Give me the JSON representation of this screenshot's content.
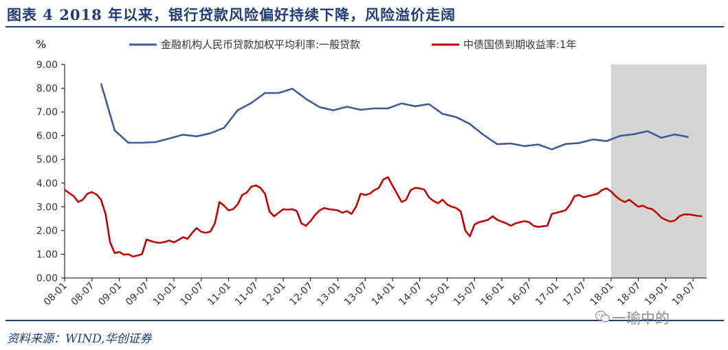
{
  "header": {
    "title": "图表 4   2018 年以来，银行贷款风险偏好持续下降，风险溢价走阔"
  },
  "footer": {
    "source": "资料来源：WIND,华创证券",
    "watermark": "一瑜中的"
  },
  "colors": {
    "title": "#1f3c78",
    "series_loan": "#3d5a9a",
    "series_bond": "#c00000",
    "shade": "#d4d4d4"
  },
  "chart_data": {
    "type": "line",
    "unit_label": "%",
    "ylim": [
      0,
      9
    ],
    "yticks": [
      "0.00",
      "1.00",
      "2.00",
      "3.00",
      "4.00",
      "5.00",
      "6.00",
      "7.00",
      "8.00",
      "9.00"
    ],
    "xlim": [
      "2008-01",
      "2019-10"
    ],
    "xticks": [
      "08-01",
      "08-07",
      "09-01",
      "09-07",
      "10-01",
      "10-07",
      "11-01",
      "11-07",
      "12-01",
      "12-07",
      "13-01",
      "13-07",
      "14-01",
      "14-07",
      "15-01",
      "15-07",
      "16-01",
      "16-07",
      "17-01",
      "17-07",
      "18-01",
      "18-07",
      "19-01",
      "19-07"
    ],
    "legend_position": "top",
    "shaded_region": [
      "2018-01",
      "2019-10"
    ],
    "grid": false,
    "series": [
      {
        "name": "金融机构人民币贷款加权平均利率:一般贷款",
        "points": [
          [
            "2008-09",
            8.2
          ],
          [
            "2008-12",
            6.22
          ],
          [
            "2009-03",
            5.7
          ],
          [
            "2009-06",
            5.7
          ],
          [
            "2009-09",
            5.73
          ],
          [
            "2009-12",
            5.88
          ],
          [
            "2010-03",
            6.04
          ],
          [
            "2010-06",
            5.97
          ],
          [
            "2010-09",
            6.1
          ],
          [
            "2010-12",
            6.33
          ],
          [
            "2011-03",
            7.07
          ],
          [
            "2011-06",
            7.38
          ],
          [
            "2011-09",
            7.8
          ],
          [
            "2011-12",
            7.8
          ],
          [
            "2012-03",
            7.98
          ],
          [
            "2012-06",
            7.55
          ],
          [
            "2012-09",
            7.2
          ],
          [
            "2012-12",
            7.07
          ],
          [
            "2013-03",
            7.22
          ],
          [
            "2013-06",
            7.09
          ],
          [
            "2013-09",
            7.15
          ],
          [
            "2013-12",
            7.15
          ],
          [
            "2014-03",
            7.36
          ],
          [
            "2014-06",
            7.24
          ],
          [
            "2014-09",
            7.33
          ],
          [
            "2014-12",
            6.92
          ],
          [
            "2015-03",
            6.78
          ],
          [
            "2015-06",
            6.49
          ],
          [
            "2015-09",
            6.03
          ],
          [
            "2015-12",
            5.64
          ],
          [
            "2016-03",
            5.67
          ],
          [
            "2016-06",
            5.56
          ],
          [
            "2016-09",
            5.63
          ],
          [
            "2016-12",
            5.42
          ],
          [
            "2017-03",
            5.65
          ],
          [
            "2017-06",
            5.69
          ],
          [
            "2017-09",
            5.84
          ],
          [
            "2017-12",
            5.77
          ],
          [
            "2018-03",
            5.99
          ],
          [
            "2018-06",
            6.06
          ],
          [
            "2018-09",
            6.19
          ],
          [
            "2018-12",
            5.91
          ],
          [
            "2019-03",
            6.05
          ],
          [
            "2019-06",
            5.94
          ]
        ]
      },
      {
        "name": "中债国债到期收益率:1年",
        "points": [
          [
            "2008-01",
            3.72
          ],
          [
            "2008-02",
            3.58
          ],
          [
            "2008-03",
            3.45
          ],
          [
            "2008-04",
            3.2
          ],
          [
            "2008-05",
            3.3
          ],
          [
            "2008-06",
            3.55
          ],
          [
            "2008-07",
            3.62
          ],
          [
            "2008-08",
            3.52
          ],
          [
            "2008-09",
            3.3
          ],
          [
            "2008-10",
            2.7
          ],
          [
            "2008-11",
            1.5
          ],
          [
            "2008-12",
            1.05
          ],
          [
            "2009-01",
            1.1
          ],
          [
            "2009-02",
            0.98
          ],
          [
            "2009-03",
            1.0
          ],
          [
            "2009-04",
            0.9
          ],
          [
            "2009-05",
            0.95
          ],
          [
            "2009-06",
            1.0
          ],
          [
            "2009-07",
            1.62
          ],
          [
            "2009-08",
            1.55
          ],
          [
            "2009-09",
            1.5
          ],
          [
            "2009-10",
            1.48
          ],
          [
            "2009-11",
            1.52
          ],
          [
            "2009-12",
            1.58
          ],
          [
            "2010-01",
            1.5
          ],
          [
            "2010-02",
            1.6
          ],
          [
            "2010-03",
            1.72
          ],
          [
            "2010-04",
            1.65
          ],
          [
            "2010-05",
            1.9
          ],
          [
            "2010-06",
            2.1
          ],
          [
            "2010-07",
            1.95
          ],
          [
            "2010-08",
            1.9
          ],
          [
            "2010-09",
            1.95
          ],
          [
            "2010-10",
            2.3
          ],
          [
            "2010-11",
            3.2
          ],
          [
            "2010-12",
            3.05
          ],
          [
            "2011-01",
            2.85
          ],
          [
            "2011-02",
            2.9
          ],
          [
            "2011-03",
            3.1
          ],
          [
            "2011-04",
            3.5
          ],
          [
            "2011-05",
            3.6
          ],
          [
            "2011-06",
            3.85
          ],
          [
            "2011-07",
            3.9
          ],
          [
            "2011-08",
            3.8
          ],
          [
            "2011-09",
            3.55
          ],
          [
            "2011-10",
            2.8
          ],
          [
            "2011-11",
            2.6
          ],
          [
            "2011-12",
            2.75
          ],
          [
            "2012-01",
            2.9
          ],
          [
            "2012-02",
            2.88
          ],
          [
            "2012-03",
            2.9
          ],
          [
            "2012-04",
            2.82
          ],
          [
            "2012-05",
            2.3
          ],
          [
            "2012-06",
            2.2
          ],
          [
            "2012-07",
            2.4
          ],
          [
            "2012-08",
            2.65
          ],
          [
            "2012-09",
            2.85
          ],
          [
            "2012-10",
            2.95
          ],
          [
            "2012-11",
            2.9
          ],
          [
            "2012-12",
            2.88
          ],
          [
            "2013-01",
            2.85
          ],
          [
            "2013-02",
            2.75
          ],
          [
            "2013-03",
            2.82
          ],
          [
            "2013-04",
            2.7
          ],
          [
            "2013-05",
            3.0
          ],
          [
            "2013-06",
            3.55
          ],
          [
            "2013-07",
            3.5
          ],
          [
            "2013-08",
            3.55
          ],
          [
            "2013-09",
            3.7
          ],
          [
            "2013-10",
            3.8
          ],
          [
            "2013-11",
            4.15
          ],
          [
            "2013-12",
            4.25
          ],
          [
            "2014-01",
            3.9
          ],
          [
            "2014-02",
            3.55
          ],
          [
            "2014-03",
            3.2
          ],
          [
            "2014-04",
            3.3
          ],
          [
            "2014-05",
            3.7
          ],
          [
            "2014-06",
            3.8
          ],
          [
            "2014-07",
            3.78
          ],
          [
            "2014-08",
            3.72
          ],
          [
            "2014-09",
            3.4
          ],
          [
            "2014-10",
            3.25
          ],
          [
            "2014-11",
            3.15
          ],
          [
            "2014-12",
            3.3
          ],
          [
            "2015-01",
            3.1
          ],
          [
            "2015-02",
            3.0
          ],
          [
            "2015-03",
            2.95
          ],
          [
            "2015-04",
            2.8
          ],
          [
            "2015-05",
            2.0
          ],
          [
            "2015-06",
            1.75
          ],
          [
            "2015-07",
            2.25
          ],
          [
            "2015-08",
            2.35
          ],
          [
            "2015-09",
            2.4
          ],
          [
            "2015-10",
            2.45
          ],
          [
            "2015-11",
            2.6
          ],
          [
            "2015-12",
            2.45
          ],
          [
            "2016-01",
            2.38
          ],
          [
            "2016-02",
            2.3
          ],
          [
            "2016-03",
            2.2
          ],
          [
            "2016-04",
            2.3
          ],
          [
            "2016-05",
            2.35
          ],
          [
            "2016-06",
            2.4
          ],
          [
            "2016-07",
            2.35
          ],
          [
            "2016-08",
            2.2
          ],
          [
            "2016-09",
            2.15
          ],
          [
            "2016-10",
            2.18
          ],
          [
            "2016-11",
            2.2
          ],
          [
            "2016-12",
            2.7
          ],
          [
            "2017-01",
            2.75
          ],
          [
            "2017-02",
            2.8
          ],
          [
            "2017-03",
            2.85
          ],
          [
            "2017-04",
            3.1
          ],
          [
            "2017-05",
            3.45
          ],
          [
            "2017-06",
            3.5
          ],
          [
            "2017-07",
            3.4
          ],
          [
            "2017-08",
            3.45
          ],
          [
            "2017-09",
            3.5
          ],
          [
            "2017-10",
            3.55
          ],
          [
            "2017-11",
            3.7
          ],
          [
            "2017-12",
            3.78
          ],
          [
            "2018-01",
            3.65
          ],
          [
            "2018-02",
            3.45
          ],
          [
            "2018-03",
            3.3
          ],
          [
            "2018-04",
            3.2
          ],
          [
            "2018-05",
            3.3
          ],
          [
            "2018-06",
            3.15
          ],
          [
            "2018-07",
            3.0
          ],
          [
            "2018-08",
            3.05
          ],
          [
            "2018-09",
            2.95
          ],
          [
            "2018-10",
            2.9
          ],
          [
            "2018-11",
            2.75
          ],
          [
            "2018-12",
            2.55
          ],
          [
            "2019-01",
            2.45
          ],
          [
            "2019-02",
            2.38
          ],
          [
            "2019-03",
            2.42
          ],
          [
            "2019-04",
            2.6
          ],
          [
            "2019-05",
            2.68
          ],
          [
            "2019-06",
            2.68
          ],
          [
            "2019-07",
            2.65
          ],
          [
            "2019-08",
            2.62
          ],
          [
            "2019-09",
            2.6
          ]
        ]
      }
    ]
  }
}
